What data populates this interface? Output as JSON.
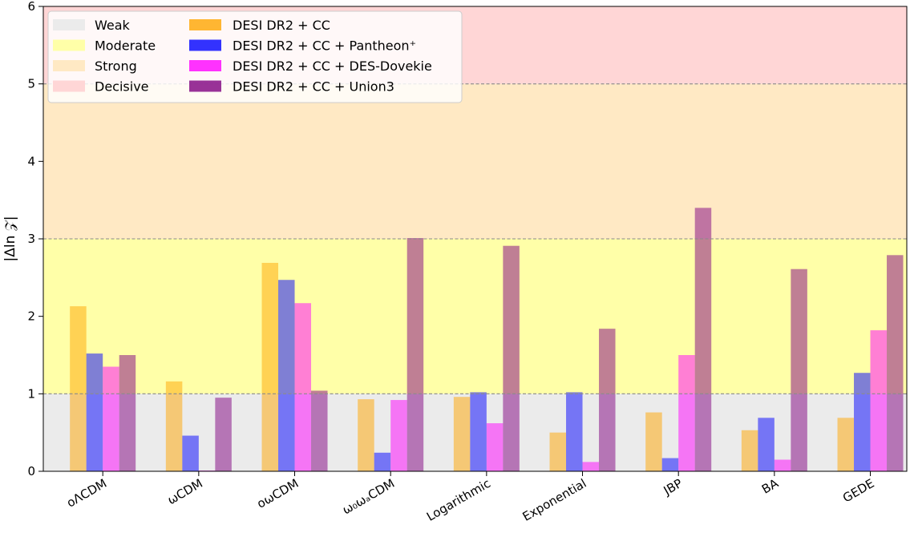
{
  "chart_data": {
    "type": "bar",
    "title": "",
    "xlabel": "",
    "ylabel": "|Δln 𝒵|",
    "ylim": [
      0,
      6
    ],
    "yticks": [
      "0",
      "1",
      "2",
      "3",
      "4",
      "5",
      "6"
    ],
    "yticks_values": [
      0,
      1,
      2,
      3,
      4,
      5,
      6
    ],
    "threshold_lines": [
      1,
      3,
      5
    ],
    "categories": [
      "oΛCDM",
      "ωCDM",
      "oωCDM",
      "ω₀ωₐCDM",
      "Logarithmic",
      "Exponential",
      "JBP",
      "BA",
      "GEDE"
    ],
    "bands": [
      {
        "name": "Weak",
        "from": 0,
        "to": 1,
        "color": "#ebebeb"
      },
      {
        "name": "Moderate",
        "from": 1,
        "to": 3,
        "color": "#ffffa8"
      },
      {
        "name": "Strong",
        "from": 3,
        "to": 5,
        "color": "#ffe9c4"
      },
      {
        "name": "Decisive",
        "from": 5,
        "to": 6,
        "color": "#ffd6d6"
      }
    ],
    "series": [
      {
        "name": "DESI DR2 + CC",
        "color": "#ffa500",
        "values": [
          2.13,
          1.16,
          2.69,
          0.93,
          0.96,
          0.5,
          0.76,
          0.53,
          0.69
        ]
      },
      {
        "name": "DESI DR2 + CC + Pantheon⁺",
        "color": "#0000ff",
        "values": [
          1.52,
          0.46,
          2.47,
          0.24,
          1.02,
          1.02,
          0.17,
          0.69,
          1.27
        ]
      },
      {
        "name": "DESI DR2 + CC + DES-Dovekie",
        "color": "#ff00ff",
        "values": [
          1.35,
          0.01,
          2.17,
          0.92,
          0.62,
          0.12,
          1.5,
          0.15,
          1.82
        ]
      },
      {
        "name": "DESI DR2 + CC + Union3",
        "color": "#800080",
        "values": [
          1.5,
          0.95,
          1.04,
          3.01,
          2.91,
          1.84,
          3.4,
          2.61,
          2.79
        ]
      }
    ],
    "legend_position": "top-left"
  }
}
